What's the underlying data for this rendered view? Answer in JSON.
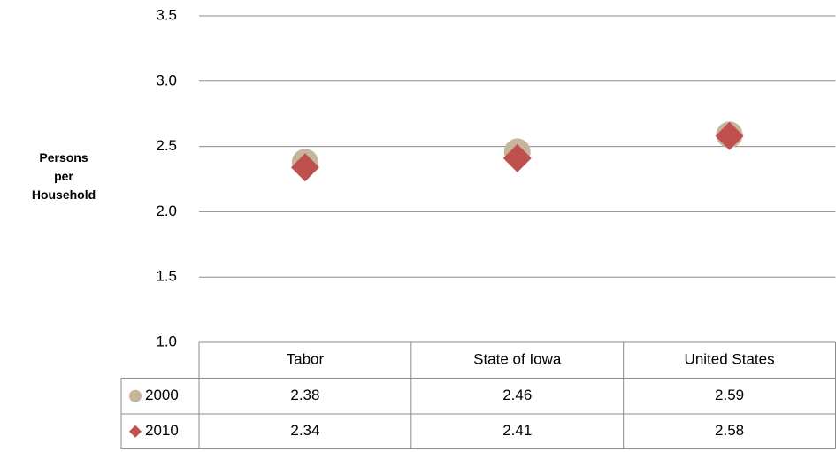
{
  "chart_data": {
    "type": "scatter",
    "y_axis_label": "Persons per Household",
    "categories": [
      "Tabor",
      "State of Iowa",
      "United States"
    ],
    "series": [
      {
        "name": "2000",
        "color": "#c4b59b",
        "marker": "circle",
        "values": [
          2.38,
          2.46,
          2.59
        ]
      },
      {
        "name": "2010",
        "color": "#c0504d",
        "marker": "diamond",
        "values": [
          2.34,
          2.41,
          2.58
        ]
      }
    ],
    "ylim": [
      1,
      3.5
    ],
    "yticks": [
      {
        "value": 1,
        "label": "1.0"
      },
      {
        "value": 1.5,
        "label": "1.5"
      },
      {
        "value": 2,
        "label": "2.0"
      },
      {
        "value": 2.5,
        "label": "2.5"
      },
      {
        "value": 3,
        "label": "3.0"
      },
      {
        "value": 3.5,
        "label": "3.5"
      }
    ],
    "grid": true,
    "data_table": true
  }
}
